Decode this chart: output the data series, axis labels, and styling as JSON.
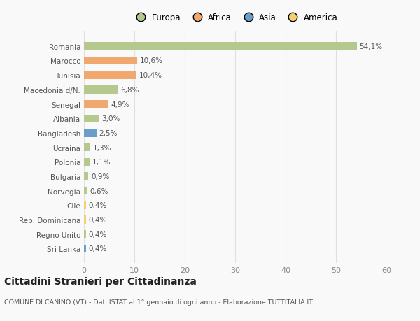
{
  "categories": [
    "Romania",
    "Marocco",
    "Tunisia",
    "Macedonia d/N.",
    "Senegal",
    "Albania",
    "Bangladesh",
    "Ucraina",
    "Polonia",
    "Bulgaria",
    "Norvegia",
    "Cile",
    "Rep. Dominicana",
    "Regno Unito",
    "Sri Lanka"
  ],
  "values": [
    54.1,
    10.6,
    10.4,
    6.8,
    4.9,
    3.0,
    2.5,
    1.3,
    1.1,
    0.9,
    0.6,
    0.4,
    0.4,
    0.4,
    0.4
  ],
  "labels": [
    "54,1%",
    "10,6%",
    "10,4%",
    "6,8%",
    "4,9%",
    "3,0%",
    "2,5%",
    "1,3%",
    "1,1%",
    "0,9%",
    "0,6%",
    "0,4%",
    "0,4%",
    "0,4%",
    "0,4%"
  ],
  "colors": [
    "#b5c98e",
    "#f0a86e",
    "#f0a86e",
    "#b5c98e",
    "#f0a86e",
    "#b5c98e",
    "#6a9dc8",
    "#b5c98e",
    "#b5c98e",
    "#b5c98e",
    "#b5c98e",
    "#f5d06e",
    "#f5d06e",
    "#b5c98e",
    "#6a9dc8"
  ],
  "legend_labels": [
    "Europa",
    "Africa",
    "Asia",
    "America"
  ],
  "legend_colors": [
    "#b5c98e",
    "#f0a86e",
    "#6a9dc8",
    "#f5d06e"
  ],
  "xlim": [
    0,
    60
  ],
  "xticks": [
    0,
    10,
    20,
    30,
    40,
    50,
    60
  ],
  "title": "Cittadini Stranieri per Cittadinanza",
  "subtitle": "COMUNE DI CANINO (VT) - Dati ISTAT al 1° gennaio di ogni anno - Elaborazione TUTTITALIA.IT",
  "background_color": "#f9f9f9",
  "grid_color": "#e0e0e0",
  "bar_height": 0.55
}
